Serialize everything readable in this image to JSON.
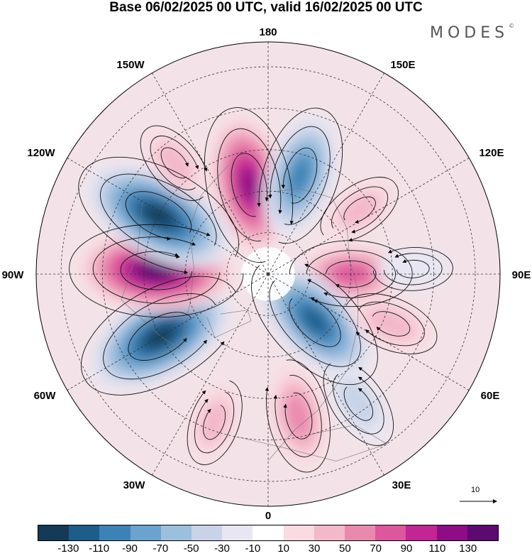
{
  "title": "Base 06/02/2025 00 UTC, valid 16/02/2025 00 UTC",
  "brand": "MODES",
  "brand_mark": "©",
  "longitude_labels": {
    "n180": "180",
    "e150": "150E",
    "e120": "120E",
    "e90": "90E",
    "e60": "60E",
    "e30": "30E",
    "n0": "0",
    "w30": "30W",
    "w60": "60W",
    "w90": "90W",
    "w120": "120W",
    "w150": "150W"
  },
  "vector_scale": {
    "label": "10",
    "icon": "arrow-right-icon"
  },
  "colorbar": {
    "colors": [
      "#143a56",
      "#1c5d8c",
      "#3d82b7",
      "#6aa3cd",
      "#9dbfde",
      "#c8d3e8",
      "#e7e6f2",
      "#ffffff",
      "#f9dbe1",
      "#f3b8c9",
      "#ea89ae",
      "#de569b",
      "#c22594",
      "#8e0c86",
      "#5b0a6f"
    ],
    "ticks": [
      "-130",
      "-110",
      "-90",
      "-70",
      "-50",
      "-30",
      "-10",
      "10",
      "30",
      "50",
      "70",
      "90",
      "110",
      "130"
    ]
  },
  "anomaly_centers": [
    {
      "lon": -168,
      "colat": 22,
      "value": 110
    },
    {
      "lon": 162,
      "colat": 25,
      "value": -90
    },
    {
      "lon": 125,
      "colat": 27,
      "value": 30
    },
    {
      "lon": 90,
      "colat": 20,
      "value": 70
    },
    {
      "lon": 45,
      "colat": 16,
      "value": -110
    },
    {
      "lon": 68,
      "colat": 32,
      "value": 40
    },
    {
      "lon": 92,
      "colat": 35,
      "value": -20
    },
    {
      "lon": 12,
      "colat": 35,
      "value": 60
    },
    {
      "lon": 35,
      "colat": 38,
      "value": -40
    },
    {
      "lon": -60,
      "colat": 30,
      "value": -130
    },
    {
      "lon": -92,
      "colat": 27,
      "value": 130
    },
    {
      "lon": -118,
      "colat": 30,
      "value": -130
    },
    {
      "lon": -140,
      "colat": 35,
      "value": 30
    },
    {
      "lon": -20,
      "colat": 38,
      "value": 30
    }
  ]
}
